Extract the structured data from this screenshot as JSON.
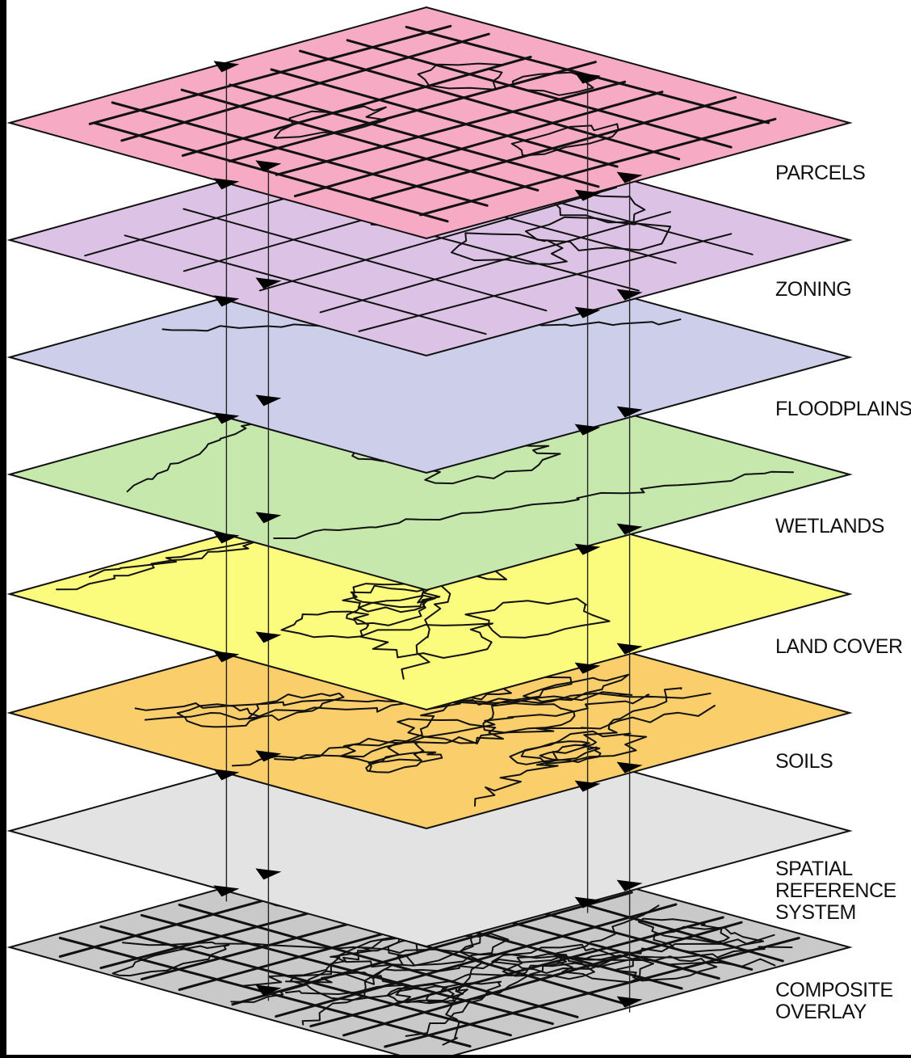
{
  "diagram": {
    "layers": [
      {
        "id": "parcels",
        "lines": [
          "PARCELS"
        ],
        "fill": "#f7aac4"
      },
      {
        "id": "zoning",
        "lines": [
          "ZONING"
        ],
        "fill": "#dcc3e6"
      },
      {
        "id": "floodplains",
        "lines": [
          "FLOODPLAINS"
        ],
        "fill": "#cdcfea"
      },
      {
        "id": "wetlands",
        "lines": [
          "WETLANDS"
        ],
        "fill": "#c6e8ad"
      },
      {
        "id": "land-cover",
        "lines": [
          "LAND COVER"
        ],
        "fill": "#fbfb7e"
      },
      {
        "id": "soils",
        "lines": [
          "SOILS"
        ],
        "fill": "#fbce6c"
      },
      {
        "id": "spatial-reference-system",
        "lines": [
          "SPATIAL",
          "REFERENCE",
          "SYSTEM"
        ],
        "fill": "#e3e3e3"
      },
      {
        "id": "composite-overlay",
        "lines": [
          "COMPOSITE",
          "OVERLAY"
        ],
        "fill": "#c9c9c9"
      }
    ],
    "background": "#ffffff",
    "frame": "#000000"
  }
}
